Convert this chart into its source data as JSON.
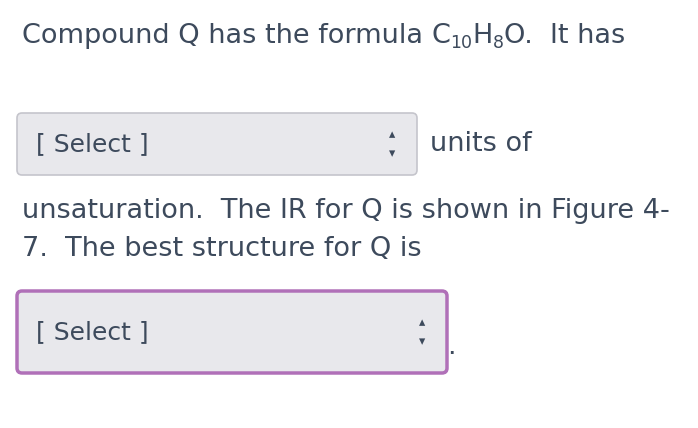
{
  "bg_color": "#ffffff",
  "text_color": "#3d4a5c",
  "dropdown1_text": "[ Select ]",
  "units_text": "units of",
  "line3": "unsaturation.  The IR for Q is shown in Figure 4-",
  "line4": "7.  The best structure for Q is",
  "dropdown2_text": "[ Select ]",
  "period": ".",
  "dropdown1_box_color": "#e8e8ec",
  "dropdown1_border_color": "#c5c5cc",
  "dropdown2_box_color": "#e8e8ec",
  "dropdown2_border_color": "#b070b8",
  "arrow_color": "#3d4a5c",
  "font_size_main": 19.5,
  "font_size_dropdown": 18,
  "font_size_subscript": 12.5,
  "font_size_arrow": 13
}
